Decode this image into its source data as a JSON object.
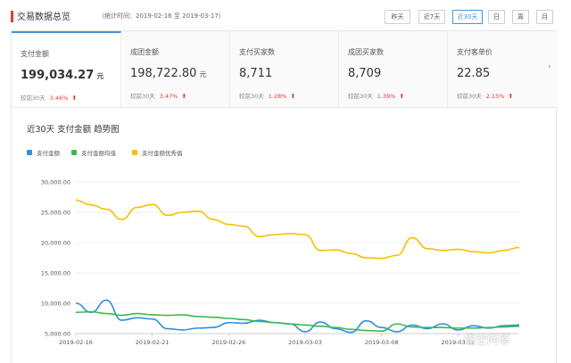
{
  "header": {
    "title": "交易数据总览",
    "range": "（统计时间：2019-02-16 至 2019-03-17）",
    "periods": [
      "昨天",
      "近7天",
      "近30天",
      "日",
      "周",
      "月"
    ],
    "active_period": "近30天"
  },
  "cards": [
    {
      "label": "支付金额",
      "value": "199,034.27",
      "unit": "元",
      "compare": "较前30天",
      "pct": "3.46%"
    },
    {
      "label": "成团金额",
      "value": "198,722.80",
      "unit": "元",
      "compare": "较前30天",
      "pct": "3.47%"
    },
    {
      "label": "支付买家数",
      "value": "8,711",
      "unit": "",
      "compare": "较前30天",
      "pct": "1.28%"
    },
    {
      "label": "成团买家数",
      "value": "8,709",
      "unit": "",
      "compare": "较前30天",
      "pct": "1.39%"
    },
    {
      "label": "支付客单价",
      "value": "22.85",
      "unit": "",
      "compare": "较前30天",
      "pct": "2.15%"
    }
  ],
  "colors": {
    "accent": "#4a90d9",
    "up": "#e4393c"
  },
  "watermark": "悟空问答",
  "chart_data": {
    "type": "line",
    "title": "近30天 支付金额 趋势图",
    "x": [
      "2019-02-16",
      "2019-02-17",
      "2019-02-18",
      "2019-02-19",
      "2019-02-20",
      "2019-02-21",
      "2019-02-22",
      "2019-02-23",
      "2019-02-24",
      "2019-02-25",
      "2019-02-26",
      "2019-02-27",
      "2019-02-28",
      "2019-03-01",
      "2019-03-02",
      "2019-03-03",
      "2019-03-04",
      "2019-03-05",
      "2019-03-06",
      "2019-03-07",
      "2019-03-08",
      "2019-03-09",
      "2019-03-10",
      "2019-03-11",
      "2019-03-12",
      "2019-03-13",
      "2019-03-14",
      "2019-03-15",
      "2019-03-16",
      "2019-03-17"
    ],
    "xticks": [
      "2019-02-16",
      "2019-02-21",
      "2019-02-26",
      "2019-03-03",
      "2019-03-08",
      "2019-03-13"
    ],
    "yticks": [
      "30,000.00",
      "25,000.00",
      "20,000.00",
      "15,000.00",
      "10,000.00",
      "5,000.00"
    ],
    "ylim": [
      5000,
      30000
    ],
    "legend_position": "top-left",
    "grid": true,
    "series": [
      {
        "name": "支付金额",
        "color": "#2f8fe0",
        "values": [
          10000,
          8500,
          10500,
          7200,
          7600,
          7400,
          5800,
          5600,
          5900,
          6000,
          6800,
          6700,
          7200,
          6800,
          6600,
          5300,
          6900,
          5800,
          5200,
          7100,
          6000,
          5300,
          6400,
          5800,
          6600,
          5600,
          6300,
          5900,
          6300,
          6400
        ]
      },
      {
        "name": "支付金额均值",
        "color": "#3cb850",
        "values": [
          8500,
          8600,
          8300,
          8000,
          8300,
          8100,
          8000,
          8100,
          7800,
          7700,
          7500,
          7300,
          7000,
          6800,
          6600,
          6400,
          6200,
          6000,
          5700,
          5500,
          5400,
          6600,
          6100,
          6000,
          6000,
          5900,
          5900,
          6000,
          6100,
          6200
        ]
      },
      {
        "name": "支付金额优秀值",
        "color": "#f2c200",
        "values": [
          27000,
          26200,
          25500,
          23800,
          25800,
          26300,
          24500,
          25000,
          25200,
          23800,
          23000,
          22700,
          21000,
          21300,
          21500,
          21300,
          18700,
          18800,
          18200,
          17500,
          17400,
          17900,
          20800,
          19000,
          18700,
          18900,
          18500,
          18300,
          18700,
          19200
        ]
      }
    ]
  }
}
